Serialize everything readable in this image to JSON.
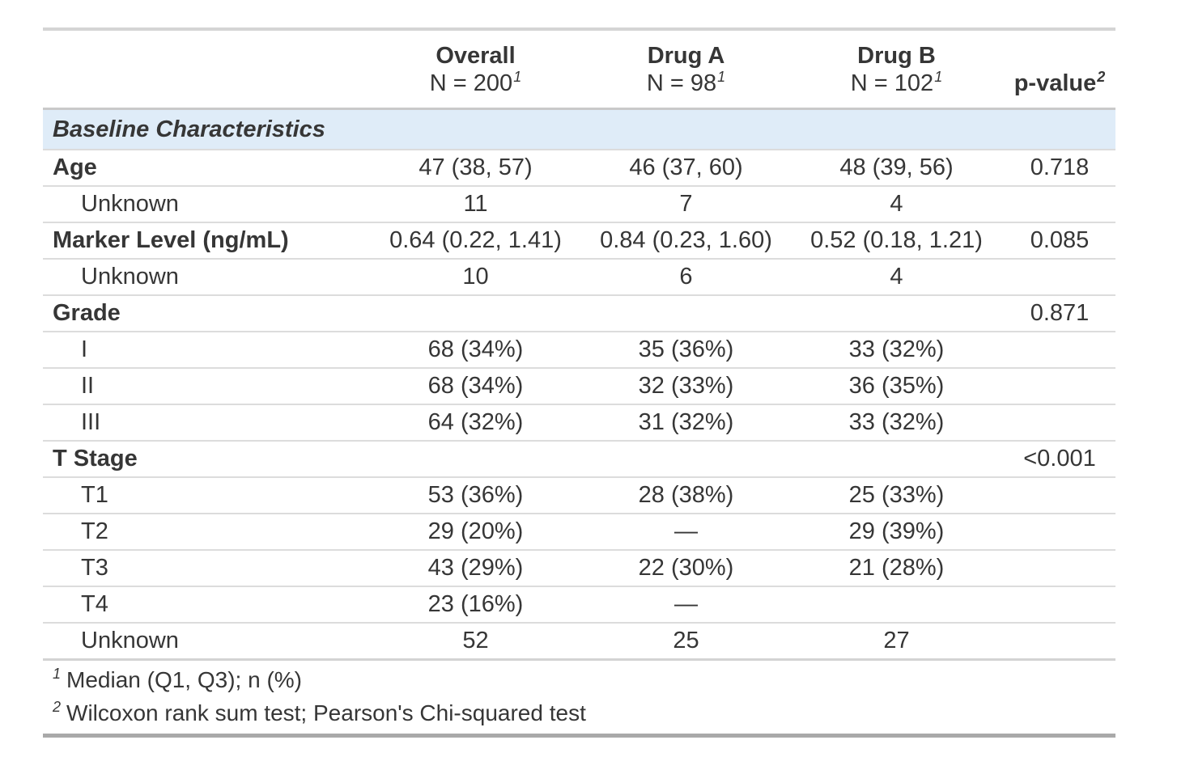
{
  "table": {
    "header": {
      "stub": "",
      "group_columns": [
        {
          "title": "Overall",
          "n": "N = 200",
          "mark": "1"
        },
        {
          "title": "Drug A",
          "n": "N = 98",
          "mark": "1"
        },
        {
          "title": "Drug B",
          "n": "N = 102",
          "mark": "1"
        }
      ],
      "pvalue": {
        "title": "p-value",
        "mark": "2"
      }
    },
    "section_header": "Baseline Characteristics",
    "rows": [
      {
        "label": "Age",
        "values": [
          "47 (38, 57)",
          "46 (37, 60)",
          "48 (39, 56)"
        ],
        "p": "0.718"
      },
      {
        "label": "Unknown",
        "values": [
          "11",
          "7",
          "4"
        ],
        "p": ""
      },
      {
        "label": "Marker Level (ng/mL)",
        "values": [
          "0.64 (0.22, 1.41)",
          "0.84 (0.23, 1.60)",
          "0.52 (0.18, 1.21)"
        ],
        "p": "0.085"
      },
      {
        "label": "Unknown",
        "values": [
          "10",
          "6",
          "4"
        ],
        "p": ""
      },
      {
        "label": "Grade",
        "values": [
          "",
          "",
          ""
        ],
        "p": "0.871"
      },
      {
        "label": "I",
        "values": [
          "68 (34%)",
          "35 (36%)",
          "33 (32%)"
        ],
        "p": ""
      },
      {
        "label": "II",
        "values": [
          "68 (34%)",
          "32 (33%)",
          "36 (35%)"
        ],
        "p": ""
      },
      {
        "label": "III",
        "values": [
          "64 (32%)",
          "31 (32%)",
          "33 (32%)"
        ],
        "p": ""
      },
      {
        "label": "T Stage",
        "values": [
          "",
          "",
          ""
        ],
        "p": "<0.001"
      },
      {
        "label": "T1",
        "values": [
          "53 (36%)",
          "28 (38%)",
          "25 (33%)"
        ],
        "p": ""
      },
      {
        "label": "T2",
        "values": [
          "29 (20%)",
          "—",
          "29 (39%)"
        ],
        "p": ""
      },
      {
        "label": "T3",
        "values": [
          "43 (29%)",
          "22 (30%)",
          "21 (28%)"
        ],
        "p": ""
      },
      {
        "label": "T4",
        "values": [
          "23 (16%)",
          "—",
          ""
        ],
        "p": ""
      },
      {
        "label": "Unknown",
        "values": [
          "52",
          "25",
          "27"
        ],
        "p": ""
      }
    ],
    "footnotes": [
      {
        "mark": "1",
        "text": "Median (Q1, Q3); n (%)"
      },
      {
        "mark": "2",
        "text": "Wilcoxon rank sum test; Pearson's Chi-squared test"
      }
    ],
    "colors": {
      "section_background": "#dfecf8",
      "text": "#363636",
      "top_border": "#d4d4d4",
      "bottom_border": "#a9a9a9",
      "row_separator": "#dcdcdc"
    }
  }
}
